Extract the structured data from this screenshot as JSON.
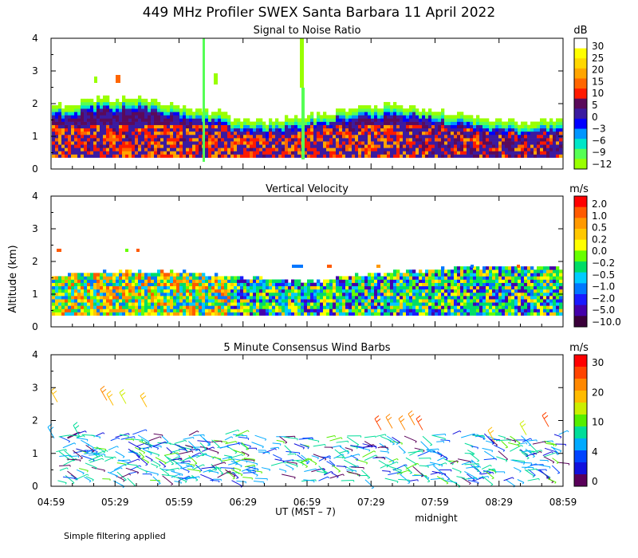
{
  "title": "449 MHz Profiler SWEX Santa Barbara 11 April 2022",
  "ylabel": "Altitude (km)",
  "xlabel": "UT  (MST – 7)",
  "midnight_label": "midnight",
  "footer_note": "Simple filtering applied",
  "time_ticks": [
    "04:59",
    "05:29",
    "05:59",
    "06:29",
    "06:59",
    "07:29",
    "07:59",
    "08:29",
    "08:59"
  ],
  "chart_data": [
    {
      "type": "heatmap",
      "title": "Signal to Noise Ratio",
      "unit": "dB",
      "ylim": [
        0,
        4
      ],
      "yticks": [
        0,
        1,
        2,
        3,
        4
      ],
      "colorbar": {
        "labels": [
          "30",
          "25",
          "20",
          "15",
          "10",
          "5",
          "0",
          "−3",
          "−6",
          "−9",
          "−12"
        ],
        "colors": [
          "#ffffff",
          "#ffff00",
          "#ffd700",
          "#ffa500",
          "#ff6600",
          "#ff1a00",
          "#5a0a5a",
          "#3a1aa0",
          "#0000ff",
          "#0096ff",
          "#00e6c8",
          "#55ff55",
          "#99ff00"
        ]
      }
    },
    {
      "type": "heatmap",
      "title": "Vertical Velocity",
      "unit": "m/s",
      "ylim": [
        0,
        4
      ],
      "yticks": [
        0,
        1,
        2,
        3,
        4
      ],
      "colorbar": {
        "labels": [
          "2.0",
          "1.0",
          "0.5",
          "0.2",
          "0.0",
          "−0.2",
          "−0.5",
          "−1.0",
          "−2.0",
          "−5.0",
          "−10.0"
        ],
        "colors": [
          "#ff0000",
          "#ff5a00",
          "#ff9900",
          "#ffc800",
          "#ffff00",
          "#66ff00",
          "#00dd66",
          "#00ccff",
          "#0077ff",
          "#1a1aff",
          "#4400aa",
          "#3a003a"
        ]
      }
    },
    {
      "type": "scatter",
      "title": "5 Minute Consensus Wind Barbs",
      "unit": "m/s",
      "ylim": [
        0,
        4
      ],
      "yticks": [
        0,
        1,
        2,
        3,
        4
      ],
      "colorbar": {
        "labels": [
          "30",
          "20",
          "10",
          "4",
          "0"
        ],
        "colors": [
          "#ff0000",
          "#ff4400",
          "#ff8800",
          "#ffbb00",
          "#ccee00",
          "#55ee00",
          "#00dd99",
          "#00aaff",
          "#0044ff",
          "#1111dd",
          "#5a005a"
        ]
      }
    }
  ]
}
